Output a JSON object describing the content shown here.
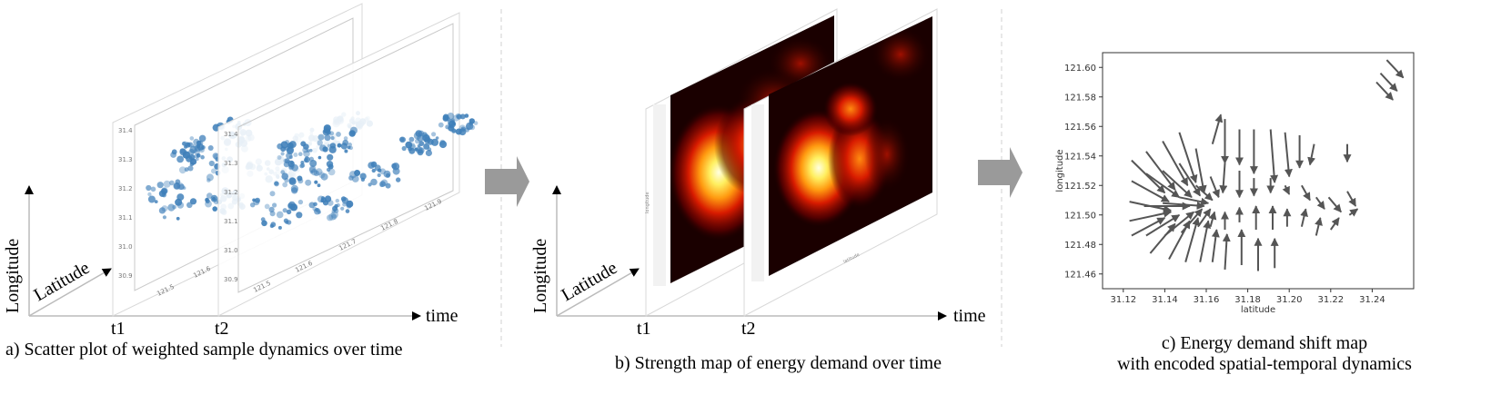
{
  "panel_a": {
    "caption": "a) Scatter plot of weighted sample dynamics over time",
    "axis_x": "time",
    "axis_y": "Longitude",
    "axis_depth": "Latitude",
    "t1": "t1",
    "t2": "t2",
    "dot_color": "#3f7fb9",
    "back_frame": {
      "y_ticks": [
        "31.4",
        "31.3",
        "31.2",
        "31.1",
        "31.0",
        "30.9"
      ],
      "x_ticks": [
        "121.5",
        "121.6"
      ]
    },
    "front_frame": {
      "y_ticks": [
        "31.4",
        "31.3",
        "31.2",
        "31.1",
        "31.0",
        "30.9"
      ],
      "x_ticks": [
        "121.5",
        "121.6",
        "121.7",
        "121.8",
        "121.9"
      ]
    }
  },
  "panel_b": {
    "caption": "b) Strength map of energy demand over time",
    "axis_x": "time",
    "axis_y": "Longitude",
    "axis_depth": "Latitude",
    "t1": "t1",
    "t2": "t2",
    "ylabel_small": "longitude",
    "xlabel_small": "latitude"
  },
  "panel_c": {
    "caption_line1": "c) Energy demand shift map",
    "caption_line2": "with encoded spatial-temporal dynamics",
    "arrow_color": "#555555",
    "chart_data": {
      "type": "quiver",
      "xlabel": "latitude",
      "ylabel": "longitude",
      "xlim": [
        31.11,
        31.26
      ],
      "ylim": [
        121.45,
        121.61
      ],
      "x_ticks": [
        "31.12",
        "31.14",
        "31.16",
        "31.18",
        "31.20",
        "31.22",
        "31.24"
      ],
      "y_ticks": [
        "121.46",
        "121.48",
        "121.50",
        "121.52",
        "121.54",
        "121.56",
        "121.58",
        "121.60"
      ],
      "x_tick_values": [
        31.12,
        31.14,
        31.16,
        31.18,
        31.2,
        31.22,
        31.24
      ],
      "y_tick_values": [
        121.46,
        121.48,
        121.5,
        121.52,
        121.54,
        121.56,
        121.58,
        121.6
      ],
      "arrows": [
        {
          "x": 31.124,
          "y": 121.537,
          "dx": 0.016,
          "dy": -0.022
        },
        {
          "x": 31.124,
          "y": 121.523,
          "dx": 0.018,
          "dy": -0.014
        },
        {
          "x": 31.123,
          "y": 121.509,
          "dx": 0.02,
          "dy": -0.006
        },
        {
          "x": 31.123,
          "y": 121.496,
          "dx": 0.02,
          "dy": 0.006
        },
        {
          "x": 31.124,
          "y": 121.486,
          "dx": 0.016,
          "dy": 0.012
        },
        {
          "x": 31.131,
          "y": 121.543,
          "dx": 0.014,
          "dy": -0.026
        },
        {
          "x": 31.131,
          "y": 121.528,
          "dx": 0.016,
          "dy": -0.016
        },
        {
          "x": 31.13,
          "y": 121.506,
          "dx": 0.022,
          "dy": 0.0
        },
        {
          "x": 31.131,
          "y": 121.486,
          "dx": 0.016,
          "dy": 0.014
        },
        {
          "x": 31.133,
          "y": 121.474,
          "dx": 0.012,
          "dy": 0.02
        },
        {
          "x": 31.139,
          "y": 121.55,
          "dx": 0.012,
          "dy": -0.03
        },
        {
          "x": 31.139,
          "y": 121.53,
          "dx": 0.014,
          "dy": -0.018
        },
        {
          "x": 31.139,
          "y": 121.508,
          "dx": 0.02,
          "dy": -0.002
        },
        {
          "x": 31.14,
          "y": 121.486,
          "dx": 0.014,
          "dy": 0.016
        },
        {
          "x": 31.142,
          "y": 121.47,
          "dx": 0.01,
          "dy": 0.026
        },
        {
          "x": 31.147,
          "y": 121.556,
          "dx": 0.008,
          "dy": -0.034
        },
        {
          "x": 31.147,
          "y": 121.535,
          "dx": 0.01,
          "dy": -0.022
        },
        {
          "x": 31.147,
          "y": 121.512,
          "dx": 0.014,
          "dy": -0.004
        },
        {
          "x": 31.148,
          "y": 121.488,
          "dx": 0.01,
          "dy": 0.016
        },
        {
          "x": 31.15,
          "y": 121.468,
          "dx": 0.006,
          "dy": 0.03
        },
        {
          "x": 31.155,
          "y": 121.545,
          "dx": 0.004,
          "dy": -0.03
        },
        {
          "x": 31.155,
          "y": 121.52,
          "dx": 0.008,
          "dy": -0.01
        },
        {
          "x": 31.156,
          "y": 121.492,
          "dx": 0.006,
          "dy": 0.012
        },
        {
          "x": 31.157,
          "y": 121.468,
          "dx": 0.004,
          "dy": 0.028
        },
        {
          "x": 31.163,
          "y": 121.548,
          "dx": 0.004,
          "dy": 0.02
        },
        {
          "x": 31.162,
          "y": 121.526,
          "dx": 0.004,
          "dy": -0.014
        },
        {
          "x": 31.162,
          "y": 121.492,
          "dx": 0.002,
          "dy": 0.01
        },
        {
          "x": 31.163,
          "y": 121.468,
          "dx": 0.002,
          "dy": 0.022
        },
        {
          "x": 31.169,
          "y": 121.565,
          "dx": 0.0,
          "dy": -0.03
        },
        {
          "x": 31.169,
          "y": 121.535,
          "dx": -0.001,
          "dy": -0.02
        },
        {
          "x": 31.169,
          "y": 121.49,
          "dx": 0.0,
          "dy": 0.012
        },
        {
          "x": 31.169,
          "y": 121.463,
          "dx": 0.001,
          "dy": 0.024
        },
        {
          "x": 31.176,
          "y": 121.558,
          "dx": 0.0,
          "dy": -0.024
        },
        {
          "x": 31.176,
          "y": 121.53,
          "dx": 0.0,
          "dy": -0.018
        },
        {
          "x": 31.176,
          "y": 121.495,
          "dx": 0.0,
          "dy": 0.01
        },
        {
          "x": 31.177,
          "y": 121.466,
          "dx": 0.0,
          "dy": 0.024
        },
        {
          "x": 31.183,
          "y": 121.558,
          "dx": 0.0,
          "dy": -0.03
        },
        {
          "x": 31.183,
          "y": 121.525,
          "dx": 0.0,
          "dy": -0.012
        },
        {
          "x": 31.184,
          "y": 121.49,
          "dx": 0.0,
          "dy": 0.016
        },
        {
          "x": 31.185,
          "y": 121.462,
          "dx": 0.0,
          "dy": 0.022
        },
        {
          "x": 31.191,
          "y": 121.558,
          "dx": 0.002,
          "dy": -0.036
        },
        {
          "x": 31.191,
          "y": 121.525,
          "dx": 0.0,
          "dy": -0.01
        },
        {
          "x": 31.192,
          "y": 121.49,
          "dx": 0.0,
          "dy": 0.016
        },
        {
          "x": 31.193,
          "y": 121.464,
          "dx": 0.0,
          "dy": 0.02
        },
        {
          "x": 31.198,
          "y": 121.556,
          "dx": 0.002,
          "dy": -0.03
        },
        {
          "x": 31.198,
          "y": 121.52,
          "dx": 0.002,
          "dy": -0.006
        },
        {
          "x": 31.199,
          "y": 121.492,
          "dx": 0.0,
          "dy": 0.012
        },
        {
          "x": 31.205,
          "y": 121.554,
          "dx": 0.0,
          "dy": -0.022
        },
        {
          "x": 31.206,
          "y": 121.52,
          "dx": 0.004,
          "dy": -0.01
        },
        {
          "x": 31.206,
          "y": 121.492,
          "dx": 0.002,
          "dy": 0.012
        },
        {
          "x": 31.212,
          "y": 121.548,
          "dx": -0.002,
          "dy": -0.014
        },
        {
          "x": 31.213,
          "y": 121.512,
          "dx": 0.004,
          "dy": -0.008
        },
        {
          "x": 31.213,
          "y": 121.486,
          "dx": 0.002,
          "dy": 0.012
        },
        {
          "x": 31.219,
          "y": 121.512,
          "dx": 0.006,
          "dy": -0.01
        },
        {
          "x": 31.22,
          "y": 121.49,
          "dx": 0.004,
          "dy": 0.008
        },
        {
          "x": 31.228,
          "y": 121.516,
          "dx": 0.004,
          "dy": -0.01
        },
        {
          "x": 31.229,
          "y": 121.5,
          "dx": 0.004,
          "dy": 0.004
        },
        {
          "x": 31.228,
          "y": 121.548,
          "dx": 0.0,
          "dy": -0.012
        },
        {
          "x": 31.247,
          "y": 121.605,
          "dx": 0.008,
          "dy": -0.012
        },
        {
          "x": 31.244,
          "y": 121.596,
          "dx": 0.008,
          "dy": -0.012
        },
        {
          "x": 31.242,
          "y": 121.59,
          "dx": 0.008,
          "dy": -0.012
        }
      ]
    }
  }
}
